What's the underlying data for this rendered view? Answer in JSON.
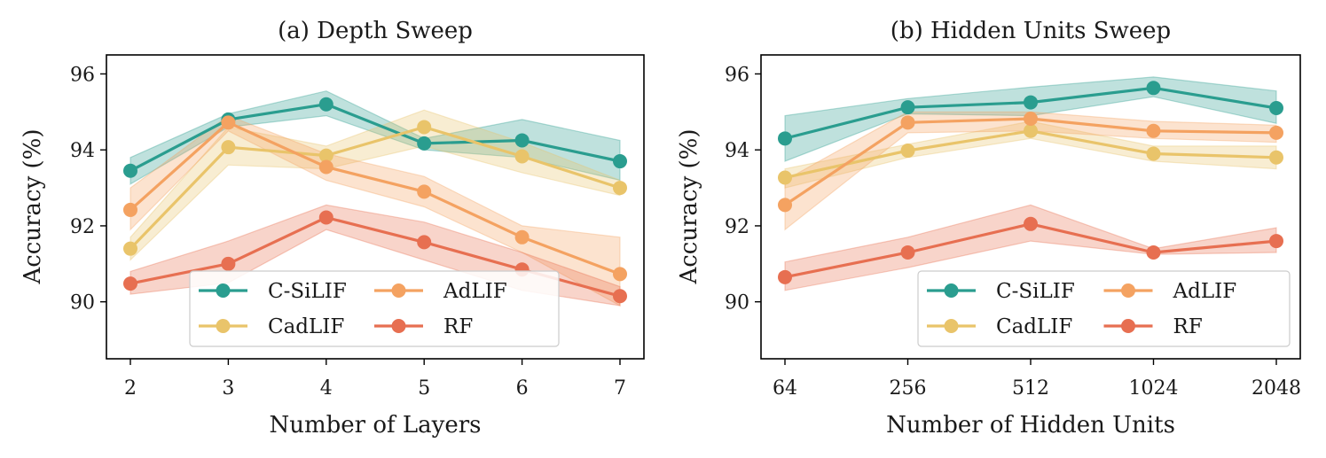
{
  "chart_data": [
    {
      "type": "line",
      "title": "(a) Depth Sweep",
      "xlabel": "Number of Layers",
      "ylabel": "Accuracy (%)",
      "categories": [
        "2",
        "3",
        "4",
        "5",
        "6",
        "7"
      ],
      "ylim": [
        88.5,
        96.5
      ],
      "yticks": [
        90,
        92,
        94,
        96
      ],
      "ytick_labels": [
        "90",
        "92",
        "94",
        "96"
      ],
      "legend": "lower-right",
      "series": [
        {
          "name": "C-SiLIF",
          "color": "#2a9d8f",
          "values": [
            93.45,
            94.8,
            95.2,
            94.17,
            94.25,
            93.7
          ],
          "lower": [
            93.1,
            94.6,
            94.9,
            94.0,
            93.8,
            93.2
          ],
          "upper": [
            93.8,
            94.95,
            95.55,
            94.3,
            94.8,
            94.25
          ]
        },
        {
          "name": "CadLIF",
          "color": "#e9c46a",
          "values": [
            91.4,
            94.07,
            93.85,
            94.6,
            93.83,
            93.0
          ],
          "lower": [
            91.1,
            93.6,
            93.5,
            94.1,
            93.4,
            92.8
          ],
          "upper": [
            91.7,
            94.6,
            94.1,
            95.05,
            94.2,
            93.2
          ]
        },
        {
          "name": "AdLIF",
          "color": "#f4a261",
          "values": [
            92.42,
            94.72,
            93.55,
            92.9,
            91.7,
            90.73
          ],
          "lower": [
            91.9,
            94.5,
            93.2,
            92.5,
            91.3,
            89.9
          ],
          "upper": [
            93.0,
            94.9,
            93.9,
            93.3,
            92.0,
            91.7
          ]
        },
        {
          "name": "RF",
          "color": "#e76f51",
          "values": [
            90.48,
            91.0,
            92.22,
            91.57,
            90.85,
            90.15
          ],
          "lower": [
            90.2,
            90.5,
            91.9,
            91.1,
            90.3,
            89.9
          ],
          "upper": [
            90.8,
            91.6,
            92.55,
            92.1,
            91.3,
            90.4
          ]
        }
      ]
    },
    {
      "type": "line",
      "title": "(b) Hidden Units Sweep",
      "xlabel": "Number of Hidden Units",
      "ylabel": "Accuracy (%)",
      "categories": [
        "64",
        "256",
        "512",
        "1024",
        "2048"
      ],
      "ylim": [
        88.5,
        96.5
      ],
      "yticks": [
        90,
        92,
        94,
        96
      ],
      "ytick_labels": [
        "90",
        "92",
        "94",
        "96"
      ],
      "legend": "lower-right",
      "series": [
        {
          "name": "C-SiLIF",
          "color": "#2a9d8f",
          "values": [
            94.3,
            95.12,
            95.25,
            95.63,
            95.1
          ],
          "lower": [
            93.7,
            94.95,
            94.9,
            95.4,
            94.7
          ],
          "upper": [
            94.9,
            95.35,
            95.65,
            95.92,
            95.55
          ]
        },
        {
          "name": "CadLIF",
          "color": "#e9c46a",
          "values": [
            93.27,
            93.98,
            94.5,
            93.9,
            93.8
          ],
          "lower": [
            93.0,
            93.8,
            94.3,
            93.7,
            93.5
          ],
          "upper": [
            93.5,
            94.15,
            94.75,
            94.1,
            94.1
          ]
        },
        {
          "name": "AdLIF",
          "color": "#f4a261",
          "values": [
            92.55,
            94.72,
            94.82,
            94.5,
            94.45
          ],
          "lower": [
            91.9,
            94.45,
            94.5,
            94.3,
            94.2
          ],
          "upper": [
            93.2,
            95.0,
            95.0,
            94.75,
            94.65
          ]
        },
        {
          "name": "RF",
          "color": "#e76f51",
          "values": [
            90.65,
            91.3,
            92.05,
            91.3,
            91.6
          ],
          "lower": [
            90.3,
            90.9,
            91.6,
            91.25,
            91.3
          ],
          "upper": [
            91.05,
            91.7,
            92.55,
            91.4,
            91.95
          ]
        }
      ]
    }
  ]
}
